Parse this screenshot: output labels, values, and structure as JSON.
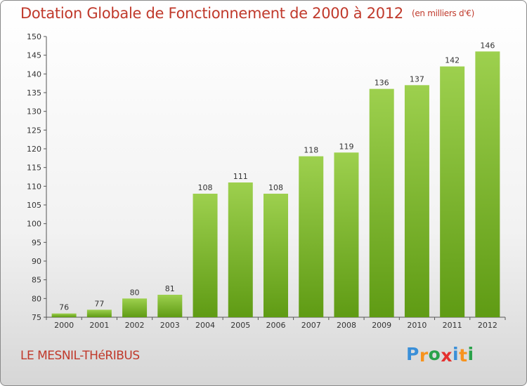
{
  "header": {
    "title": "Dotation Globale de Fonctionnement de 2000 à 2012",
    "unit": "(en milliers d'€)"
  },
  "footer": {
    "commune": "LE MESNIL-THéRIBUS",
    "logo": [
      "P",
      "r",
      "o",
      "x",
      "i",
      "t",
      "i"
    ]
  },
  "colors": {
    "bar_top": "#9dd04e",
    "bar_bottom": "#5f9b14",
    "title": "#c0392b",
    "logo": [
      "#3a8fd8",
      "#f7931e",
      "#2aa24a",
      "#e5302f",
      "#3a8fd8",
      "#f7931e",
      "#2aa24a"
    ]
  },
  "chart_data": {
    "type": "bar",
    "title": "Dotation Globale de Fonctionnement de 2000 à 2012",
    "subtitle": "(en milliers d'€)",
    "categories": [
      "2000",
      "2001",
      "2002",
      "2003",
      "2004",
      "2005",
      "2006",
      "2007",
      "2008",
      "2009",
      "2010",
      "2011",
      "2012"
    ],
    "values": [
      76,
      77,
      80,
      81,
      108,
      111,
      108,
      118,
      119,
      136,
      137,
      142,
      146
    ],
    "ylim": [
      75,
      150
    ],
    "yticks": [
      75,
      80,
      85,
      90,
      95,
      100,
      105,
      110,
      115,
      120,
      125,
      130,
      135,
      140,
      145,
      150
    ],
    "grid": false,
    "xlabel": "",
    "ylabel": ""
  }
}
